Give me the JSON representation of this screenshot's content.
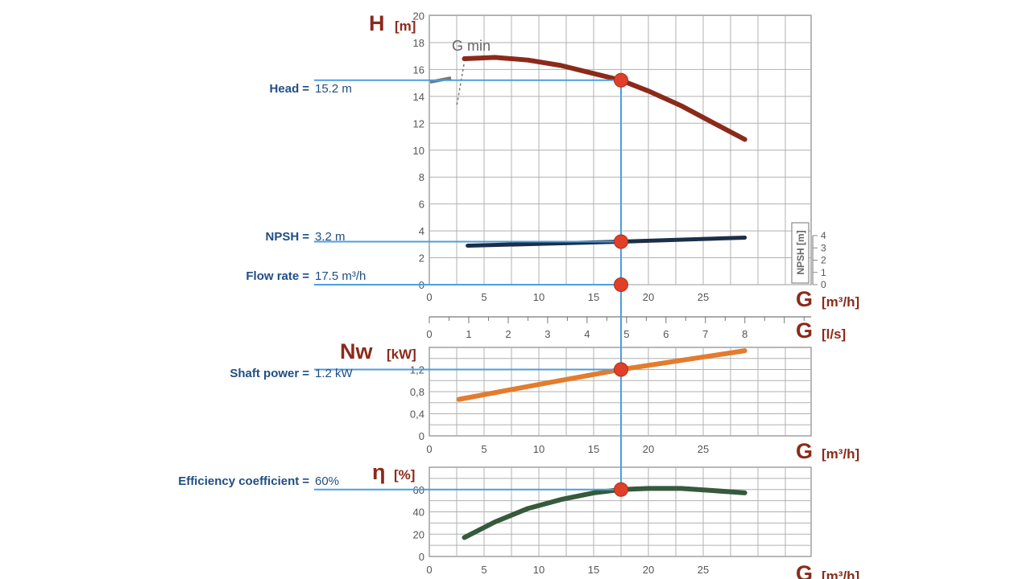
{
  "colors": {
    "head": "#8b2a1b",
    "npsh": "#1c2e48",
    "power": "#e37c2e",
    "efficiency": "#355a3c",
    "guide": "#4b9fde",
    "point": "#e0402a",
    "grid": "#b0b0b0",
    "axis_label": "#8b2a1b",
    "callout": "#1f4e85"
  },
  "callouts": [
    {
      "name": "Head",
      "value": "15.2 m",
      "y_value": 15.2
    },
    {
      "name": "NPSH",
      "value": "3.2 m",
      "y_value": 3.2
    },
    {
      "name": "Flow rate",
      "value": "17.5  m³/h",
      "y_value": 0
    },
    {
      "name": "Shaft power",
      "value": "1.2 kW",
      "y_value": 1.2
    },
    {
      "name": "Efficiency coefficient",
      "value": "60%",
      "y_value": 60
    }
  ],
  "equals_sign": "=",
  "annotation": "G min",
  "operating_point_flow": 17.5,
  "chart_data": [
    {
      "type": "line",
      "id": "head",
      "ylabel_symbol": "H",
      "ylabel_unit": "[m]",
      "xlabel_symbol": "G",
      "xlabel_unit": "[m³/h]",
      "xlim": [
        0,
        35
      ],
      "ylim": [
        0,
        20
      ],
      "x_ticks": [
        0,
        5,
        10,
        15,
        20,
        25
      ],
      "y_ticks": [
        0,
        2,
        4,
        6,
        8,
        10,
        12,
        14,
        16,
        18,
        20
      ],
      "grid": true,
      "series": [
        {
          "x": [
            3.2,
            6,
            9,
            12,
            15,
            17.5,
            20,
            23,
            26,
            28.8
          ],
          "y": [
            16.8,
            16.9,
            16.7,
            16.3,
            15.7,
            15.2,
            14.4,
            13.3,
            12.0,
            10.8
          ]
        }
      ],
      "secondary_axis": {
        "label": "NPSH [m]",
        "ticks": [
          0,
          1,
          2,
          3,
          4
        ],
        "series": [
          {
            "x": [
              3.5,
              17.5,
              28.8
            ],
            "y": [
              2.9,
              3.2,
              3.5
            ]
          }
        ]
      }
    },
    {
      "type": "axis",
      "id": "flow_ls",
      "xlabel_symbol": "G",
      "xlabel_unit": "[l/s]",
      "xlim": [
        0,
        9.72
      ],
      "x_ticks": [
        0,
        1,
        2,
        3,
        4,
        5,
        6,
        7,
        8
      ]
    },
    {
      "type": "line",
      "id": "power",
      "ylabel_symbol": "Nw",
      "ylabel_unit": "[kW]",
      "xlabel_symbol": "G",
      "xlabel_unit": "[m³/h]",
      "xlim": [
        0,
        35
      ],
      "ylim": [
        0,
        2
      ],
      "x_ticks": [
        0,
        5,
        10,
        15,
        20,
        25
      ],
      "y_ticks": [
        0,
        0.4,
        0.8,
        1.2
      ],
      "y_tick_labels": [
        "0",
        "0,4",
        "0,8",
        "1,2"
      ],
      "grid": true,
      "series": [
        {
          "x": [
            2.7,
            10,
            17.5,
            28.8
          ],
          "y": [
            0.66,
            0.93,
            1.2,
            1.54
          ]
        }
      ]
    },
    {
      "type": "line",
      "id": "efficiency",
      "ylabel_symbol": "η",
      "ylabel_unit": "[%]",
      "xlabel_symbol": "G",
      "xlabel_unit": "[m³/h]",
      "xlim": [
        0,
        35
      ],
      "ylim": [
        0,
        80
      ],
      "x_ticks": [
        0,
        5,
        10,
        15,
        20,
        25
      ],
      "y_ticks": [
        0,
        20,
        40,
        60
      ],
      "grid": true,
      "series": [
        {
          "x": [
            3.2,
            6,
            9,
            12,
            15,
            17.5,
            20,
            23,
            26,
            28.8
          ],
          "y": [
            17,
            31,
            43,
            51,
            57,
            60,
            61,
            61,
            59,
            57
          ]
        }
      ]
    }
  ]
}
